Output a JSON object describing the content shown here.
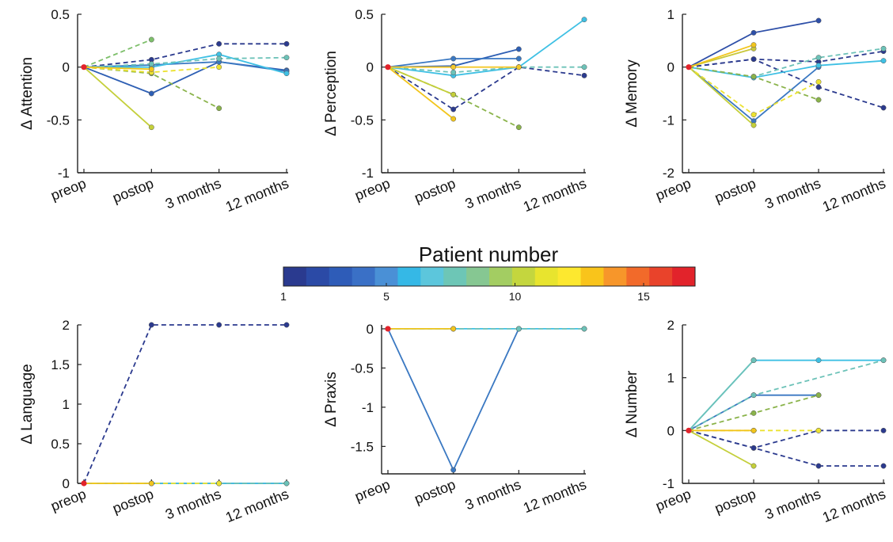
{
  "colorbar": {
    "title": "Patient number",
    "ticks": [
      "1",
      "5",
      "10",
      "15"
    ],
    "tick_values": [
      1,
      5,
      10,
      15
    ],
    "range": [
      1,
      17
    ],
    "colors": [
      "#2a3a8f",
      "#2b4aa6",
      "#2e5cb8",
      "#3a70c6",
      "#4a90d6",
      "#35b8e6",
      "#5cc6dc",
      "#6dc6b6",
      "#86c792",
      "#a3cd62",
      "#c4d63e",
      "#e8e42e",
      "#fde82f",
      "#f9c41b",
      "#f7962a",
      "#f26a2a",
      "#e9432b",
      "#e2232b"
    ]
  },
  "chart_data": [
    {
      "type": "line",
      "name": "attention",
      "ylabel": "Δ Attention",
      "ylim": [
        -1,
        0.5
      ],
      "yticks": [
        -1,
        -0.5,
        0,
        0.5
      ],
      "ytick_labels": [
        "-1",
        "-0.5",
        "0",
        "0.5"
      ],
      "categories": [
        "preop",
        "postop",
        "3 months",
        "12 months"
      ],
      "series": [
        {
          "color": "#2b3a8e",
          "dashed": true,
          "values": [
            0,
            0.07,
            0.22,
            0.22
          ]
        },
        {
          "color": "#2e5fb4",
          "dashed": false,
          "values": [
            0,
            -0.25,
            0.05,
            -0.03
          ]
        },
        {
          "color": "#3a78c2",
          "dashed": false,
          "values": [
            0,
            0.02,
            0.05,
            -0.04
          ]
        },
        {
          "color": "#3fc0e4",
          "dashed": false,
          "values": [
            0,
            0.0,
            0.12,
            -0.06
          ]
        },
        {
          "color": "#6cc2b8",
          "dashed": true,
          "values": [
            0,
            0.03,
            0.08,
            0.09
          ]
        },
        {
          "color": "#7dbf6a",
          "dashed": true,
          "values": [
            0,
            0.26,
            null,
            null
          ]
        },
        {
          "color": "#8ab34a",
          "dashed": true,
          "values": [
            0,
            -0.06,
            -0.39,
            null
          ]
        },
        {
          "color": "#c4cf3a",
          "dashed": false,
          "values": [
            0,
            -0.57,
            null,
            null
          ]
        },
        {
          "color": "#ece230",
          "dashed": true,
          "values": [
            0,
            -0.05,
            0.0,
            null
          ]
        },
        {
          "color": "#f2c51c",
          "dashed": false,
          "values": [
            0,
            -0.02,
            null,
            null
          ]
        }
      ]
    },
    {
      "type": "line",
      "name": "perception",
      "ylabel": "Δ Perception",
      "ylim": [
        -1,
        0.5
      ],
      "yticks": [
        -1,
        -0.5,
        0,
        0.5
      ],
      "ytick_labels": [
        "-1",
        "-0.5",
        "0",
        "0.5"
      ],
      "categories": [
        "preop",
        "postop",
        "3 months",
        "12 months"
      ],
      "series": [
        {
          "color": "#2b3a8e",
          "dashed": true,
          "values": [
            0,
            -0.4,
            0.0,
            -0.08
          ]
        },
        {
          "color": "#2e5fb4",
          "dashed": false,
          "values": [
            0,
            0.01,
            0.17,
            null
          ]
        },
        {
          "color": "#3a78c2",
          "dashed": false,
          "values": [
            0,
            0.08,
            0.08,
            null
          ]
        },
        {
          "color": "#3fc0e4",
          "dashed": false,
          "values": [
            0,
            -0.08,
            0.0,
            0.45
          ]
        },
        {
          "color": "#6cc2b8",
          "dashed": true,
          "values": [
            0,
            -0.05,
            0.0,
            0.0
          ]
        },
        {
          "color": "#8ab34a",
          "dashed": true,
          "values": [
            0,
            -0.26,
            -0.57,
            null
          ]
        },
        {
          "color": "#c4cf3a",
          "dashed": false,
          "values": [
            0,
            -0.26,
            null,
            null
          ]
        },
        {
          "color": "#f2c51c",
          "dashed": false,
          "values": [
            0,
            -0.49,
            null,
            null
          ]
        },
        {
          "color": "#f4c82a",
          "dashed": false,
          "values": [
            0,
            0.0,
            0.0,
            null
          ]
        }
      ]
    },
    {
      "type": "line",
      "name": "memory",
      "ylabel": "Δ Memory",
      "ylim": [
        -2,
        1
      ],
      "yticks": [
        -2,
        -1,
        0,
        1
      ],
      "ytick_labels": [
        "-2",
        "-1",
        "0",
        "1"
      ],
      "categories": [
        "preop",
        "postop",
        "3 months",
        "12 months"
      ],
      "series": [
        {
          "color": "#2b3a8e",
          "dashed": true,
          "values": [
            0,
            0.15,
            -0.38,
            -0.77
          ]
        },
        {
          "color": "#2e4fa8",
          "dashed": false,
          "values": [
            0,
            0.65,
            0.88,
            null
          ]
        },
        {
          "color": "#2b3a8e",
          "dashed": true,
          "values": [
            0,
            0.15,
            0.1,
            0.3
          ]
        },
        {
          "color": "#3a78c2",
          "dashed": false,
          "values": [
            0,
            -1.02,
            0.0,
            null
          ]
        },
        {
          "color": "#3fc0e4",
          "dashed": false,
          "values": [
            0,
            -0.2,
            0.03,
            0.12
          ]
        },
        {
          "color": "#6cc2b8",
          "dashed": true,
          "values": [
            0,
            -0.18,
            0.18,
            0.35
          ]
        },
        {
          "color": "#8ab34a",
          "dashed": true,
          "values": [
            0,
            -0.18,
            -0.62,
            null
          ]
        },
        {
          "color": "#c4cf3a",
          "dashed": false,
          "values": [
            0,
            -1.1,
            null,
            null
          ]
        },
        {
          "color": "#ece230",
          "dashed": true,
          "values": [
            0,
            -0.9,
            -0.28,
            null
          ]
        },
        {
          "color": "#c9c83a",
          "dashed": false,
          "values": [
            0,
            0.35,
            null,
            null
          ]
        },
        {
          "color": "#f2c51c",
          "dashed": false,
          "values": [
            0,
            0.42,
            null,
            null
          ]
        }
      ]
    },
    {
      "type": "line",
      "name": "language",
      "ylabel": "Δ Language",
      "ylim": [
        0,
        2
      ],
      "yticks": [
        0,
        0.5,
        1,
        1.5,
        2
      ],
      "ytick_labels": [
        "0",
        "0.5",
        "1",
        "1.5",
        "2"
      ],
      "categories": [
        "preop",
        "postop",
        "3 months",
        "12 months"
      ],
      "series": [
        {
          "color": "#2b3a8e",
          "dashed": true,
          "values": [
            0,
            2,
            2,
            2
          ]
        },
        {
          "color": "#3fc0e4",
          "dashed": false,
          "values": [
            0,
            0,
            0,
            0
          ]
        },
        {
          "color": "#6cc2b8",
          "dashed": true,
          "values": [
            0,
            0,
            0,
            0
          ]
        },
        {
          "color": "#ece230",
          "dashed": true,
          "values": [
            0,
            0,
            0,
            null
          ]
        },
        {
          "color": "#f2c51c",
          "dashed": false,
          "values": [
            0,
            0,
            null,
            null
          ]
        }
      ]
    },
    {
      "type": "line",
      "name": "praxis",
      "ylabel": "Δ Praxis",
      "ylim": [
        -1.85,
        0.05
      ],
      "yticks": [
        -1.5,
        -1,
        -0.5,
        0
      ],
      "ytick_labels": [
        "-1.5",
        "-1",
        "-0.5",
        "0"
      ],
      "categories": [
        "preop",
        "postop",
        "3 months",
        "12 months"
      ],
      "series": [
        {
          "color": "#3a78c2",
          "dashed": false,
          "values": [
            0,
            -1.8,
            0,
            null
          ]
        },
        {
          "color": "#3fc0e4",
          "dashed": false,
          "values": [
            0,
            0,
            0,
            0
          ]
        },
        {
          "color": "#6cc2b8",
          "dashed": true,
          "values": [
            0,
            0,
            0,
            0
          ]
        },
        {
          "color": "#f2c51c",
          "dashed": false,
          "values": [
            0,
            0,
            null,
            null
          ]
        }
      ]
    },
    {
      "type": "line",
      "name": "number",
      "ylabel": "Δ Number",
      "ylim": [
        -1,
        2
      ],
      "yticks": [
        -1,
        0,
        1,
        2
      ],
      "ytick_labels": [
        "-1",
        "0",
        "1",
        "2"
      ],
      "categories": [
        "preop",
        "postop",
        "3 months",
        "12 months"
      ],
      "series": [
        {
          "color": "#2b3a8e",
          "dashed": true,
          "values": [
            0,
            -0.33,
            -0.67,
            -0.67
          ]
        },
        {
          "color": "#2b3a8e",
          "dashed": true,
          "values": [
            0,
            -0.33,
            0,
            0
          ]
        },
        {
          "color": "#3a78c2",
          "dashed": false,
          "values": [
            0,
            0.67,
            0.67,
            null
          ]
        },
        {
          "color": "#3fc0e4",
          "dashed": false,
          "values": [
            0,
            1.33,
            1.33,
            1.33
          ]
        },
        {
          "color": "#6cc2b8",
          "dashed": false,
          "values": [
            0,
            1.33,
            null,
            null
          ]
        },
        {
          "color": "#6cc2b8",
          "dashed": true,
          "values": [
            0,
            0.67,
            null,
            1.33
          ]
        },
        {
          "color": "#8ab34a",
          "dashed": true,
          "values": [
            0,
            0.33,
            0.67,
            null
          ]
        },
        {
          "color": "#c4cf3a",
          "dashed": false,
          "values": [
            0,
            -0.67,
            null,
            null
          ]
        },
        {
          "color": "#ece230",
          "dashed": true,
          "values": [
            0,
            0,
            0,
            null
          ]
        },
        {
          "color": "#f2c51c",
          "dashed": false,
          "values": [
            0,
            0,
            null,
            null
          ]
        }
      ]
    }
  ]
}
